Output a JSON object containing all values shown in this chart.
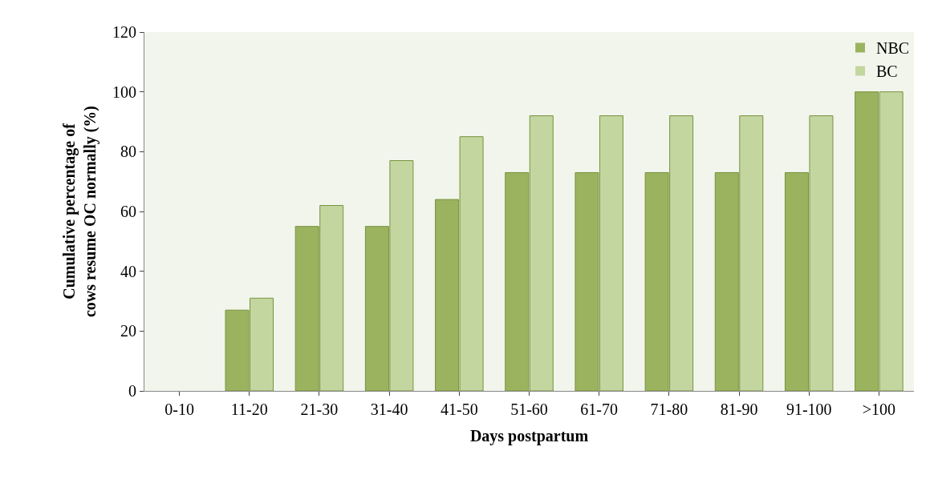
{
  "chart_data": {
    "type": "bar",
    "xlabel": "Days postpartum",
    "ylabel": "Cumulative percentage of\ncows resume OC normally (%)",
    "categories": [
      "0-10",
      "11-20",
      "21-30",
      "31-40",
      "41-50",
      "51-60",
      "61-70",
      "71-80",
      "81-90",
      "91-100",
      ">100"
    ],
    "series": [
      {
        "name": "NBC",
        "color": "#9bb35f",
        "values": [
          0,
          27,
          55,
          55,
          64,
          73,
          73,
          73,
          73,
          73,
          100
        ]
      },
      {
        "name": "BC",
        "color": "#c4d6a0",
        "values": [
          0,
          31,
          62,
          77,
          85,
          92,
          92,
          92,
          92,
          92,
          100
        ]
      }
    ],
    "ylim": [
      0,
      120
    ],
    "yticks": [
      0,
      20,
      40,
      60,
      80,
      100,
      120
    ],
    "grid": false,
    "legend": "top right"
  }
}
